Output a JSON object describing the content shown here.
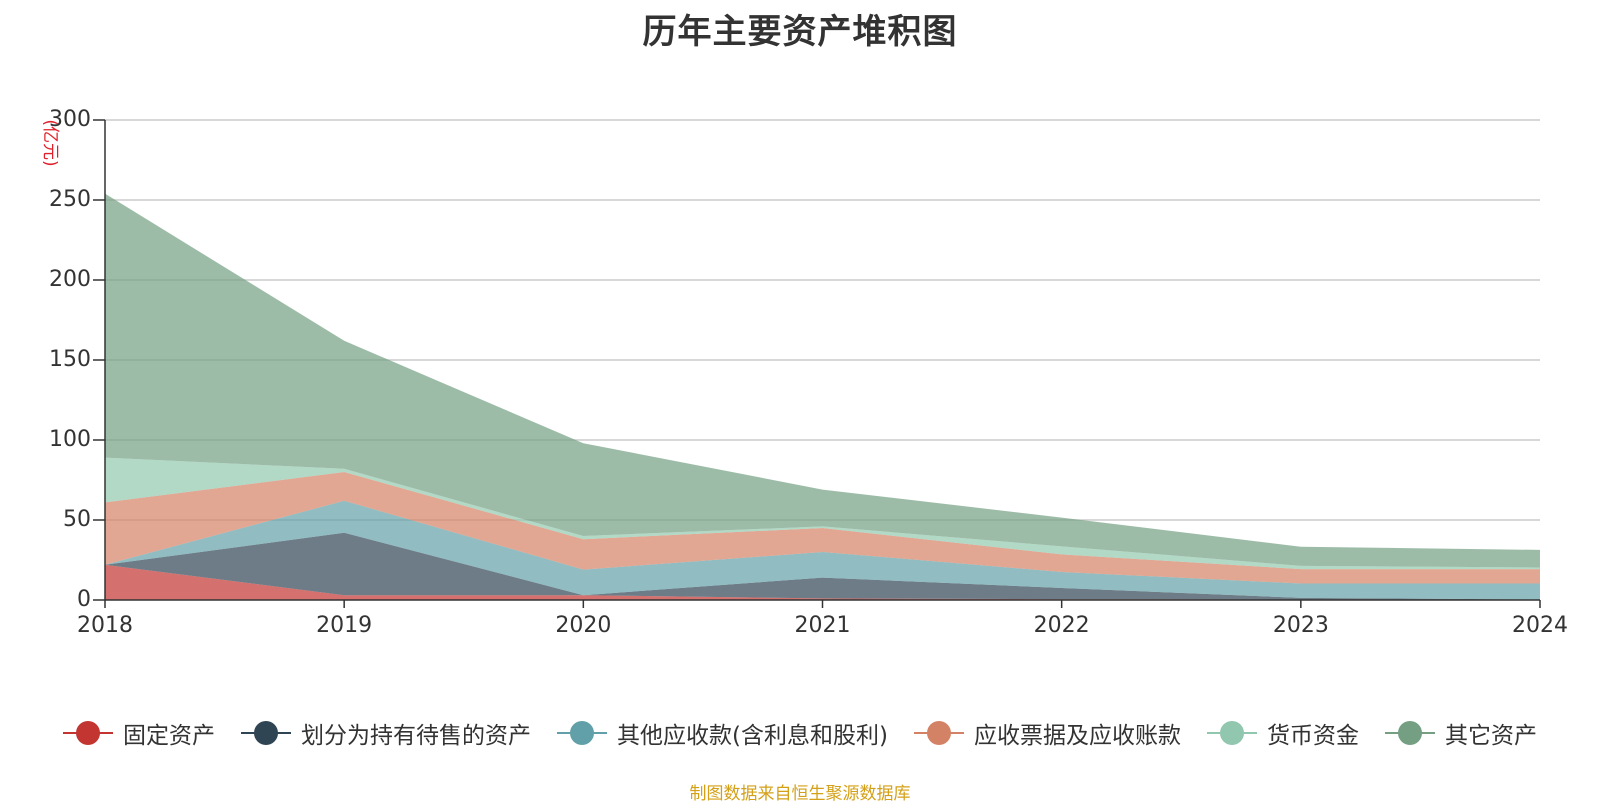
{
  "chart_data": {
    "type": "area",
    "stacked": true,
    "title": "历年主要资产堆积图",
    "unit_label": "(亿元)",
    "x": [
      "2018",
      "2019",
      "2020",
      "2021",
      "2022",
      "2023",
      "2024"
    ],
    "ylim": [
      0,
      300
    ],
    "yticks": [
      "0",
      "50",
      "100",
      "150",
      "200",
      "250",
      "300"
    ],
    "grid": true,
    "legend_position": "bottom",
    "series": [
      {
        "name": "固定资产",
        "color": "#c23531",
        "values": [
          22,
          3,
          3,
          1,
          0.5,
          0.3,
          0.3
        ]
      },
      {
        "name": "划分为持有待售的资产",
        "color": "#2f4554",
        "values": [
          0,
          39,
          0,
          13,
          7,
          1,
          0
        ]
      },
      {
        "name": "其他应收款(含利息和股利)",
        "color": "#61a0a8",
        "values": [
          0,
          20,
          16,
          16,
          10,
          9,
          10
        ]
      },
      {
        "name": "应收票据及应收账款",
        "color": "#d48265",
        "values": [
          39,
          18,
          19,
          15,
          11,
          9,
          9
        ]
      },
      {
        "name": "货币资金",
        "color": "#91c7ae",
        "values": [
          28,
          2,
          2,
          1,
          5,
          2,
          1
        ]
      },
      {
        "name": "其它资产",
        "color": "#749f83",
        "values": [
          165,
          80,
          58,
          23,
          18,
          12,
          11
        ]
      }
    ]
  },
  "footer": {
    "source": "制图数据来自恒生聚源数据库"
  }
}
